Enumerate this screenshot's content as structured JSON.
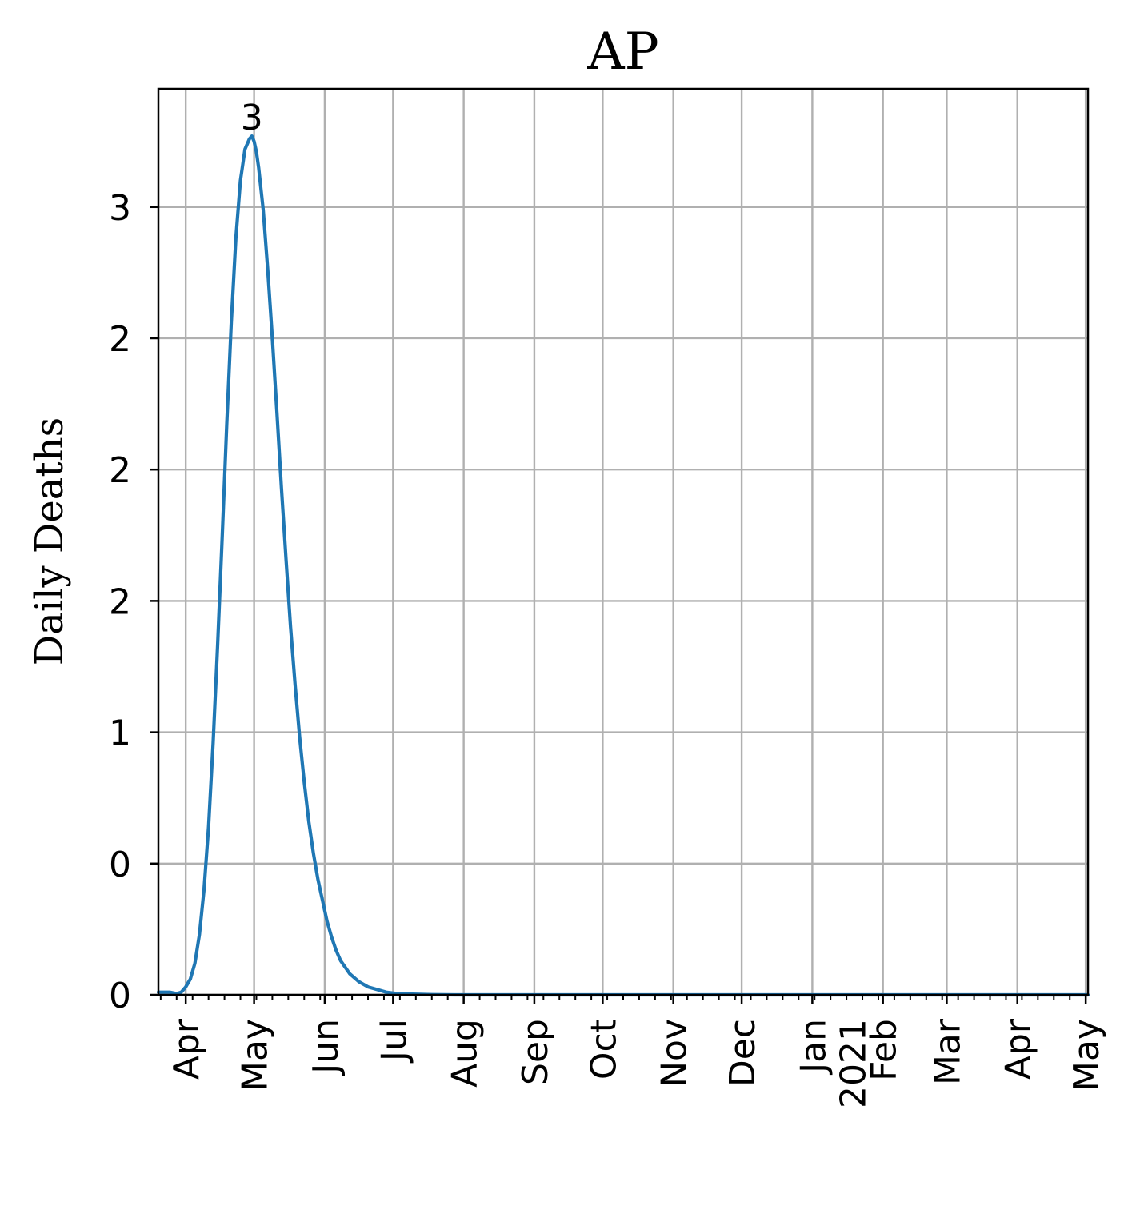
{
  "chart_data": {
    "type": "line",
    "title": "AP",
    "xlabel": "",
    "ylabel": "Daily Deaths",
    "grid": true,
    "x_range": [
      "2020-03-19",
      "2021-05-01"
    ],
    "ylim": [
      0,
      3.45
    ],
    "y_ticks": [
      {
        "value": 0.0,
        "label": "0"
      },
      {
        "value": 0.5,
        "label": "0"
      },
      {
        "value": 1.0,
        "label": "1"
      },
      {
        "value": 1.5,
        "label": "2"
      },
      {
        "value": 2.0,
        "label": "2"
      },
      {
        "value": 2.5,
        "label": "2"
      },
      {
        "value": 3.0,
        "label": "3"
      }
    ],
    "x_ticks": [
      {
        "day": 12,
        "label": "Apr"
      },
      {
        "day": 42,
        "label": "May"
      },
      {
        "day": 73,
        "label": "Jun"
      },
      {
        "day": 103,
        "label": "Jul"
      },
      {
        "day": 134,
        "label": "Aug"
      },
      {
        "day": 165,
        "label": "Sep"
      },
      {
        "day": 195,
        "label": "Oct"
      },
      {
        "day": 226,
        "label": "Nov"
      },
      {
        "day": 256,
        "label": "Dec"
      },
      {
        "day": 287,
        "label": "Jan"
      },
      {
        "day": 287,
        "label": "2021"
      },
      {
        "day": 318,
        "label": "Feb"
      },
      {
        "day": 346,
        "label": "Mar"
      },
      {
        "day": 377,
        "label": "Apr"
      },
      {
        "day": 407,
        "label": "May"
      }
    ],
    "series": [
      {
        "name": "Daily Deaths",
        "color": "#1f77b4",
        "x_days": [
          0,
          5,
          8,
          10,
          12,
          14,
          16,
          18,
          20,
          22,
          24,
          26,
          28,
          30,
          32,
          34,
          36,
          38,
          40,
          41,
          42,
          43,
          44,
          46,
          48,
          50,
          52,
          54,
          56,
          58,
          60,
          62,
          64,
          66,
          68,
          70,
          72,
          74,
          76,
          78,
          80,
          84,
          88,
          92,
          96,
          100,
          105,
          110,
          120,
          130,
          150,
          200,
          250,
          300,
          350,
          408
        ],
        "values": [
          0.01,
          0.01,
          0.005,
          0.01,
          0.03,
          0.06,
          0.12,
          0.23,
          0.4,
          0.64,
          0.96,
          1.33,
          1.74,
          2.17,
          2.56,
          2.88,
          3.1,
          3.22,
          3.26,
          3.27,
          3.25,
          3.21,
          3.15,
          2.99,
          2.76,
          2.5,
          2.22,
          1.93,
          1.66,
          1.4,
          1.18,
          0.98,
          0.81,
          0.66,
          0.54,
          0.44,
          0.36,
          0.28,
          0.22,
          0.17,
          0.13,
          0.08,
          0.05,
          0.03,
          0.02,
          0.01,
          0.005,
          0.003,
          0.001,
          0.0,
          0.0,
          0.0,
          0.0,
          0.0,
          0.0,
          0.0
        ]
      }
    ],
    "annotations": [
      {
        "text": "3",
        "day": 41,
        "value": 3.27
      }
    ]
  }
}
